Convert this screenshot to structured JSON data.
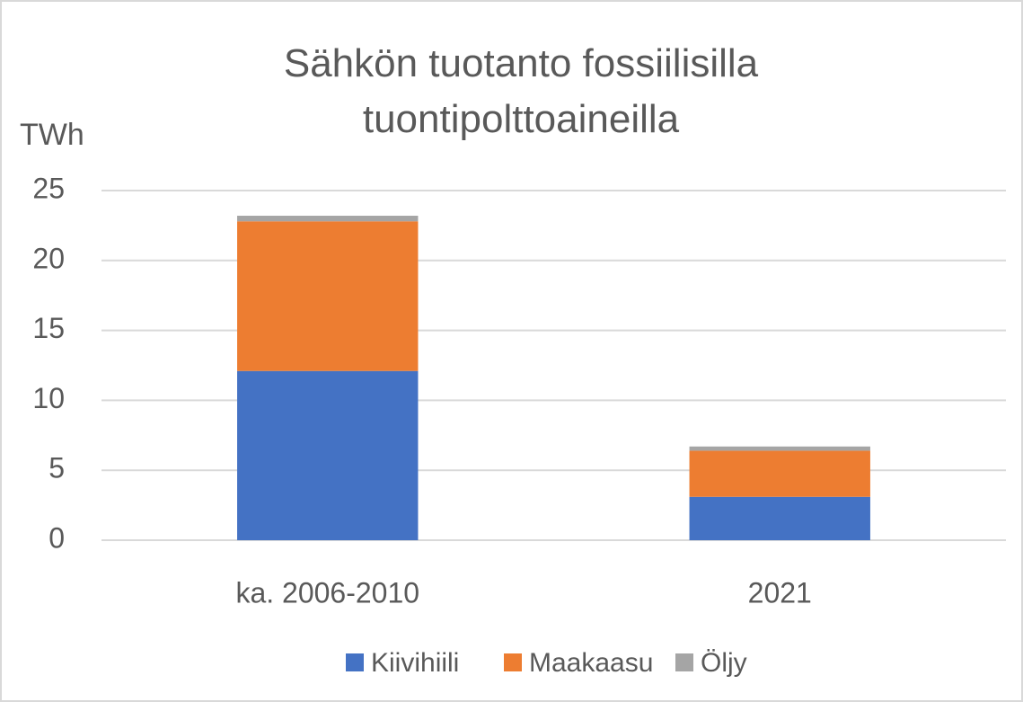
{
  "chart_data": {
    "type": "stacked_bar",
    "title": "Sähkön tuotanto fossiilisilla tuontipolttoaineilla",
    "y_label": "TWh",
    "categories": [
      "ka. 2006-2010",
      "2021"
    ],
    "series": [
      {
        "name": "Kiivihiili",
        "color": "#4472c4",
        "values": [
          12.1,
          3.1
        ]
      },
      {
        "name": "Maakaasu",
        "color": "#ed7d31",
        "values": [
          10.7,
          3.3
        ]
      },
      {
        "name": "Öljy",
        "color": "#a5a5a5",
        "values": [
          0.4,
          0.3
        ]
      }
    ],
    "ylim": [
      0,
      25
    ],
    "yticks": [
      0,
      5,
      10,
      15,
      20,
      25
    ],
    "grid": true,
    "legend": "bottom"
  }
}
